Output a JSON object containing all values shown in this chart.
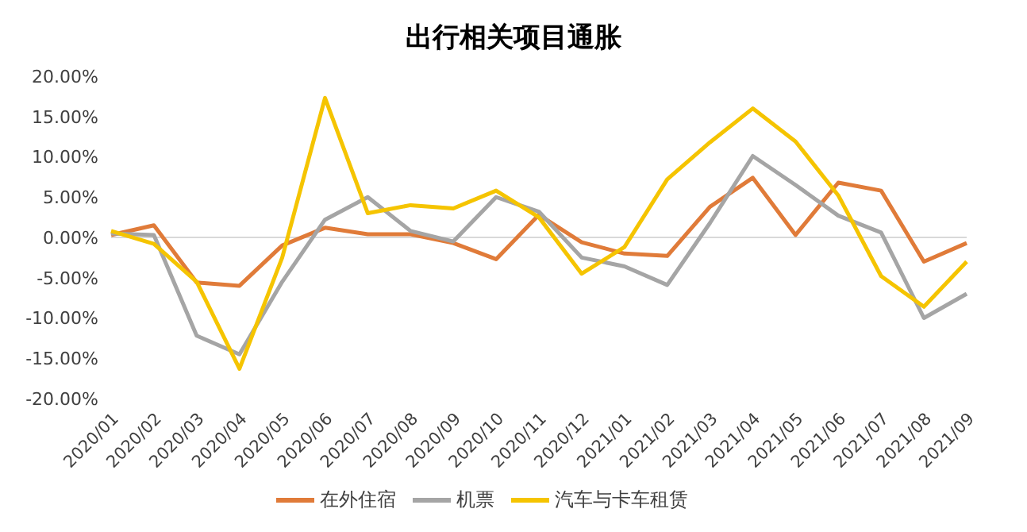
{
  "chart_data": {
    "type": "line",
    "title": "出行相关项目通胀",
    "categories": [
      "2020/01",
      "2020/02",
      "2020/03",
      "2020/04",
      "2020/05",
      "2020/06",
      "2020/07",
      "2020/08",
      "2020/09",
      "2020/10",
      "2020/11",
      "2020/12",
      "2021/01",
      "2021/02",
      "2021/03",
      "2021/04",
      "2021/05",
      "2021/06",
      "2021/07",
      "2021/08",
      "2021/09"
    ],
    "series": [
      {
        "name": "在外住宿",
        "color": "#e07b39",
        "values": [
          0.3,
          1.5,
          -5.6,
          -6.0,
          -1.0,
          1.2,
          0.4,
          0.4,
          -0.7,
          -2.7,
          2.8,
          -0.6,
          -2.0,
          -2.3,
          3.8,
          7.4,
          0.3,
          6.8,
          5.8,
          -3.0,
          -0.7
        ]
      },
      {
        "name": "机票",
        "color": "#a5a5a5",
        "values": [
          0.5,
          0.3,
          -12.2,
          -14.5,
          -5.5,
          2.2,
          5.0,
          0.8,
          -0.5,
          5.0,
          3.2,
          -2.5,
          -3.6,
          -5.9,
          1.8,
          10.1,
          6.5,
          2.7,
          0.6,
          -10.0,
          -7.0
        ]
      },
      {
        "name": "汽车与卡车租赁",
        "color": "#f5c400",
        "values": [
          0.8,
          -0.8,
          -5.5,
          -16.3,
          -2.5,
          17.3,
          3.0,
          4.0,
          3.6,
          5.8,
          2.5,
          -4.5,
          -1.2,
          7.2,
          11.8,
          16.0,
          11.9,
          5.2,
          -4.8,
          -8.6,
          -3.0
        ]
      }
    ],
    "ylim": [
      -20,
      20
    ],
    "yticks": [
      {
        "value": -20,
        "label": "-20.00%"
      },
      {
        "value": -15,
        "label": "-15.00%"
      },
      {
        "value": -10,
        "label": "-10.00%"
      },
      {
        "value": -5,
        "label": "-5.00%"
      },
      {
        "value": 0,
        "label": "0.00%"
      },
      {
        "value": 5,
        "label": "5.00%"
      },
      {
        "value": 10,
        "label": "10.00%"
      },
      {
        "value": 15,
        "label": "15.00%"
      },
      {
        "value": 20,
        "label": "20.00%"
      }
    ],
    "ref_lines": [
      {
        "axis": "y",
        "value": 0,
        "color": "#d9d9d9"
      }
    ],
    "legend": "bottom",
    "marker": "none",
    "line_style": "solid"
  }
}
